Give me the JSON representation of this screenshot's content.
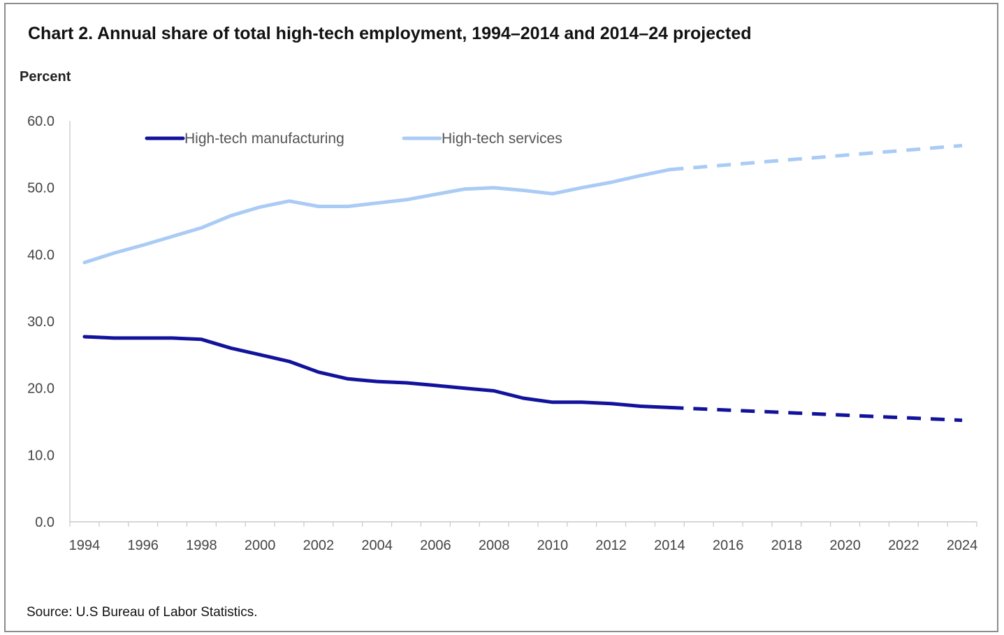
{
  "chart_data": {
    "type": "line",
    "title": "Chart 2. Annual share of total high-tech employment, 1994–2014 and 2014–24 projected",
    "ylabel": "Percent",
    "source": "Source: U.S Bureau of Labor Statistics.",
    "ylim": [
      0,
      60
    ],
    "yticks": [
      "0.0",
      "10.0",
      "20.0",
      "30.0",
      "40.0",
      "50.0",
      "60.0"
    ],
    "xlim": [
      1994,
      2024
    ],
    "xticks": [
      "1994",
      "1996",
      "1998",
      "2000",
      "2002",
      "2004",
      "2006",
      "2008",
      "2010",
      "2012",
      "2014",
      "2016",
      "2018",
      "2020",
      "2022",
      "2024"
    ],
    "grid": false,
    "legend_position": "top-left",
    "series": [
      {
        "name": "High-tech manufacturing",
        "color": "#12129c",
        "historical": {
          "x": [
            1994,
            1995,
            1996,
            1997,
            1998,
            1999,
            2000,
            2001,
            2002,
            2003,
            2004,
            2005,
            2006,
            2007,
            2008,
            2009,
            2010,
            2011,
            2012,
            2013,
            2014
          ],
          "y": [
            27.7,
            27.5,
            27.5,
            27.5,
            27.3,
            26.0,
            25.0,
            24.0,
            22.4,
            21.4,
            21.0,
            20.8,
            20.4,
            20.0,
            19.6,
            18.5,
            17.9,
            17.9,
            17.7,
            17.3,
            17.1
          ]
        },
        "projected": {
          "x": [
            2014,
            2024
          ],
          "y": [
            17.1,
            15.2
          ]
        }
      },
      {
        "name": "High-tech services",
        "color": "#a9cbf5",
        "historical": {
          "x": [
            1994,
            1995,
            1996,
            1997,
            1998,
            1999,
            2000,
            2001,
            2002,
            2003,
            2004,
            2005,
            2006,
            2007,
            2008,
            2009,
            2010,
            2011,
            2012,
            2013,
            2014
          ],
          "y": [
            38.8,
            40.2,
            41.4,
            42.7,
            44.0,
            45.8,
            47.1,
            48.0,
            47.2,
            47.2,
            47.7,
            48.2,
            49.0,
            49.8,
            50.0,
            49.6,
            49.1,
            50.0,
            50.8,
            51.8,
            52.7
          ]
        },
        "projected": {
          "x": [
            2014,
            2024
          ],
          "y": [
            52.7,
            56.3
          ]
        }
      }
    ]
  }
}
